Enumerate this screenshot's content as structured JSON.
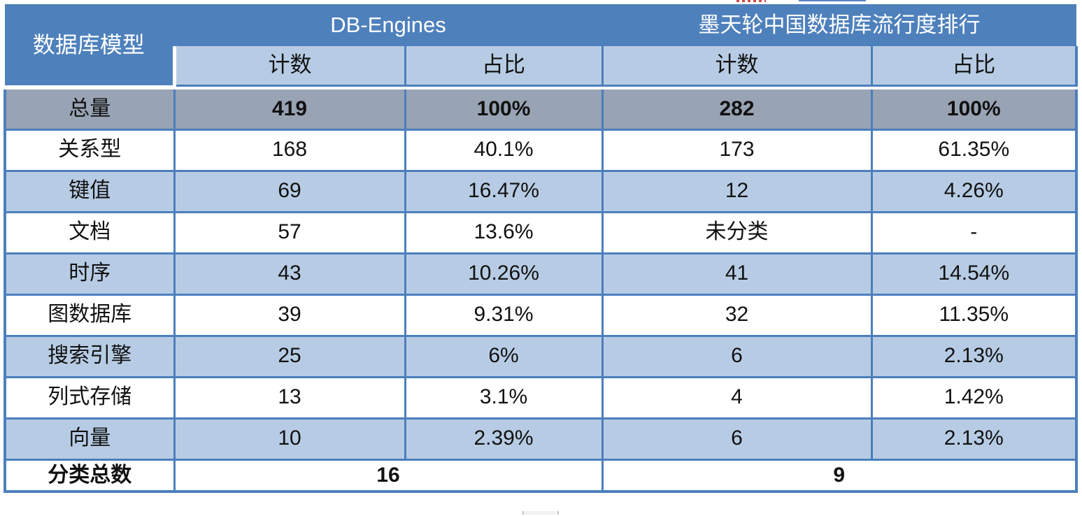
{
  "colors": {
    "header_blue": "#4E80BC",
    "light_blue": "#B7CCE4",
    "total_gray": "#98A3B4",
    "border_blue": "#4C7FBC",
    "text": "#111111"
  },
  "table": {
    "header": {
      "model_label": "数据库模型",
      "source_db_engines": "DB-Engines",
      "source_modb": "墨天轮中国数据库流行度排行",
      "count_label": "计数",
      "share_label": "占比"
    },
    "rows": [
      {
        "label": "总量",
        "de_count": "419",
        "de_share": "100%",
        "mt_count": "282",
        "mt_share": "100%"
      },
      {
        "label": "关系型",
        "de_count": "168",
        "de_share": "40.1%",
        "mt_count": "173",
        "mt_share": "61.35%"
      },
      {
        "label": "键值",
        "de_count": "69",
        "de_share": "16.47%",
        "mt_count": "12",
        "mt_share": "4.26%"
      },
      {
        "label": "文档",
        "de_count": "57",
        "de_share": "13.6%",
        "mt_count": "未分类",
        "mt_share": "-"
      },
      {
        "label": "时序",
        "de_count": "43",
        "de_share": "10.26%",
        "mt_count": "41",
        "mt_share": "14.54%"
      },
      {
        "label": "图数据库",
        "de_count": "39",
        "de_share": "9.31%",
        "mt_count": "32",
        "mt_share": "11.35%"
      },
      {
        "label": "搜索引擎",
        "de_count": "25",
        "de_share": "6%",
        "mt_count": "6",
        "mt_share": "2.13%"
      },
      {
        "label": "列式存储",
        "de_count": "13",
        "de_share": "3.1%",
        "mt_count": "4",
        "mt_share": "1.42%"
      },
      {
        "label": "向量",
        "de_count": "10",
        "de_share": "2.39%",
        "mt_count": "6",
        "mt_share": "2.13%"
      }
    ],
    "footer": {
      "label": "分类总数",
      "de_category_total": "16",
      "mt_category_total": "9"
    }
  }
}
